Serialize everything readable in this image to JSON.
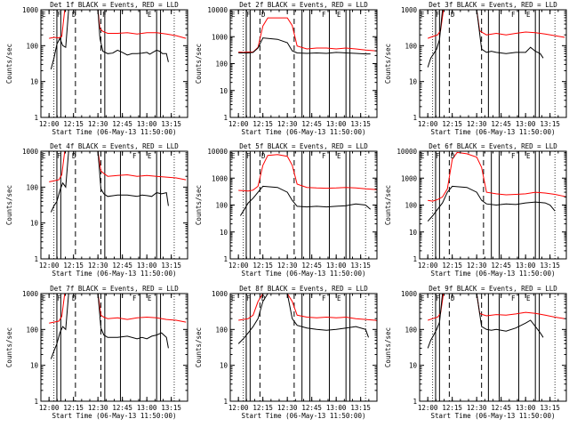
{
  "common": {
    "ylabel": "Counts/sec",
    "xlabel": "Start Time (06-May-13 11:50:00)",
    "title_suffix": "BLACK = Events, RED = LLD",
    "xticks": [
      "12:00",
      "12:15",
      "12:30",
      "12:45",
      "13:00",
      "13:15"
    ],
    "ytick_labels": [
      "1",
      "10",
      "100",
      "1000"
    ],
    "yscale": "log",
    "line_colors": {
      "events": "#000000",
      "lld": "#ff0000"
    }
  },
  "chart_data": [
    {
      "type": "line",
      "title": "Det 1f BLACK = Events, RED = LLD",
      "ylim": [
        1,
        1000
      ],
      "ymax_label": "1000",
      "markers": [
        "E",
        "F",
        "D",
        "",
        "F",
        "",
        "",
        "E"
      ],
      "solid_lines": [
        12.08,
        12.12,
        12.57,
        12.73,
        12.93,
        13.1,
        13.14
      ],
      "dashed_lines": [
        12.27,
        12.53
      ],
      "dotted_lines": [
        12.05,
        13.28
      ],
      "series": [
        {
          "name": "Events",
          "x": [
            12.02,
            12.05,
            12.08,
            12.11,
            12.14,
            12.17,
            12.2,
            12.5,
            12.52,
            12.55,
            12.6,
            12.65,
            12.7,
            12.75,
            12.8,
            12.85,
            12.9,
            12.95,
            13.0,
            13.03,
            13.06,
            13.1,
            13.13,
            13.16,
            13.2,
            13.22
          ],
          "y": [
            22,
            45,
            110,
            160,
            100,
            90,
            1000,
            1000,
            160,
            70,
            60,
            62,
            75,
            65,
            55,
            60,
            60,
            62,
            65,
            58,
            65,
            75,
            70,
            60,
            60,
            35
          ]
        },
        {
          "name": "LLD",
          "x": [
            12.0,
            12.05,
            12.1,
            12.13,
            12.16,
            12.5,
            12.52,
            12.55,
            12.6,
            12.7,
            12.8,
            12.9,
            13.0,
            13.1,
            13.2,
            13.3,
            13.4
          ],
          "y": [
            160,
            170,
            165,
            180,
            1000,
            1000,
            300,
            250,
            220,
            220,
            230,
            210,
            230,
            230,
            210,
            190,
            160
          ]
        }
      ]
    },
    {
      "type": "line",
      "title": "Det 2f BLACK = Events, RED = LLD",
      "ylim": [
        1,
        10000
      ],
      "ymax_label": "10000",
      "markers": [
        "E",
        "F",
        "D",
        "",
        "",
        "",
        "F",
        "E"
      ],
      "solid_lines": [
        12.08,
        12.12,
        12.65,
        12.73,
        12.93,
        13.1,
        13.14
      ],
      "dashed_lines": [
        12.22,
        12.57
      ],
      "dotted_lines": [
        12.05,
        13.3
      ],
      "series": [
        {
          "name": "Events",
          "x": [
            12.0,
            12.05,
            12.1,
            12.15,
            12.2,
            12.25,
            12.4,
            12.5,
            12.55,
            12.6,
            12.7,
            12.8,
            12.9,
            13.0,
            13.1,
            13.2,
            13.3,
            13.35
          ],
          "y": [
            250,
            250,
            250,
            260,
            380,
            900,
            800,
            600,
            300,
            250,
            240,
            250,
            240,
            260,
            250,
            240,
            230,
            230
          ]
        },
        {
          "name": "LLD",
          "x": [
            12.0,
            12.05,
            12.1,
            12.15,
            12.2,
            12.25,
            12.3,
            12.4,
            12.5,
            12.55,
            12.6,
            12.7,
            12.8,
            12.9,
            13.0,
            13.1,
            13.2,
            13.3,
            13.4,
            13.45
          ],
          "y": [
            270,
            260,
            270,
            270,
            400,
            2500,
            5000,
            5000,
            5000,
            2600,
            450,
            350,
            380,
            380,
            350,
            380,
            350,
            320,
            300,
            280
          ]
        }
      ]
    },
    {
      "type": "line",
      "title": "Det 3f BLACK = Events, RED = LLD",
      "ylim": [
        1,
        1000
      ],
      "ymax_label": "1000",
      "markers": [
        "E",
        "F",
        "D",
        "",
        "",
        "",
        "F",
        "E"
      ],
      "solid_lines": [
        12.08,
        12.12,
        12.62,
        12.73,
        12.93,
        13.1,
        13.14
      ],
      "dashed_lines": [
        12.22,
        12.55
      ],
      "dotted_lines": [
        12.05,
        13.3
      ],
      "series": [
        {
          "name": "Events",
          "x": [
            12.0,
            12.03,
            12.06,
            12.09,
            12.12,
            12.15,
            12.5,
            12.55,
            12.6,
            12.65,
            12.7,
            12.8,
            12.9,
            13.0,
            13.05,
            13.1,
            13.15,
            13.18
          ],
          "y": [
            25,
            45,
            60,
            80,
            150,
            1000,
            1000,
            80,
            65,
            70,
            65,
            60,
            65,
            65,
            90,
            70,
            60,
            45
          ]
        },
        {
          "name": "LLD",
          "x": [
            12.0,
            12.05,
            12.1,
            12.13,
            12.16,
            12.5,
            12.53,
            12.56,
            12.6,
            12.7,
            12.8,
            12.9,
            13.0,
            13.1,
            13.2,
            13.3,
            13.4
          ],
          "y": [
            160,
            180,
            200,
            260,
            1000,
            1000,
            260,
            230,
            200,
            220,
            200,
            220,
            240,
            230,
            210,
            190,
            170
          ]
        }
      ]
    },
    {
      "type": "line",
      "title": "Det 4f BLACK = Events, RED = LLD",
      "ylim": [
        1,
        1000
      ],
      "ymax_label": "1000",
      "markers": [
        "E",
        "F",
        "D",
        "",
        "",
        "",
        "F",
        "E"
      ],
      "solid_lines": [
        12.08,
        12.12,
        12.57,
        12.73,
        12.93,
        13.1,
        13.14
      ],
      "dashed_lines": [
        12.27,
        12.53
      ],
      "dotted_lines": [
        12.05,
        13.28
      ],
      "series": [
        {
          "name": "Events",
          "x": [
            12.02,
            12.05,
            12.08,
            12.11,
            12.14,
            12.17,
            12.2,
            12.5,
            12.53,
            12.56,
            12.6,
            12.7,
            12.8,
            12.9,
            12.95,
            13.0,
            13.05,
            13.1,
            13.15,
            13.2,
            13.22
          ],
          "y": [
            20,
            30,
            40,
            80,
            130,
            100,
            1000,
            1000,
            90,
            65,
            55,
            60,
            60,
            55,
            60,
            58,
            55,
            70,
            65,
            70,
            30
          ]
        },
        {
          "name": "LLD",
          "x": [
            12.0,
            12.05,
            12.1,
            12.13,
            12.16,
            12.5,
            12.53,
            12.56,
            12.6,
            12.7,
            12.8,
            12.9,
            13.0,
            13.1,
            13.2,
            13.3,
            13.4
          ],
          "y": [
            140,
            150,
            160,
            220,
            1000,
            1000,
            280,
            240,
            200,
            210,
            220,
            200,
            210,
            200,
            190,
            180,
            160
          ]
        }
      ]
    },
    {
      "type": "line",
      "title": "Det 5f BLACK = Events, RED = LLD",
      "ylim": [
        1,
        10000
      ],
      "ymax_label": "10000",
      "markers": [
        "E",
        "F",
        "D",
        "",
        "",
        "",
        "F",
        "E"
      ],
      "solid_lines": [
        12.08,
        12.12,
        12.65,
        12.73,
        12.93,
        13.1,
        13.14
      ],
      "dashed_lines": [
        12.22,
        12.57
      ],
      "dotted_lines": [
        12.05,
        13.3
      ],
      "series": [
        {
          "name": "Events",
          "x": [
            12.02,
            12.05,
            12.1,
            12.15,
            12.2,
            12.25,
            12.4,
            12.5,
            12.55,
            12.6,
            12.7,
            12.8,
            12.9,
            13.0,
            13.1,
            13.2,
            13.3,
            13.35
          ],
          "y": [
            40,
            60,
            120,
            180,
            300,
            500,
            450,
            300,
            150,
            90,
            85,
            90,
            85,
            90,
            95,
            110,
            100,
            70
          ]
        },
        {
          "name": "LLD",
          "x": [
            12.0,
            12.05,
            12.1,
            12.15,
            12.2,
            12.25,
            12.3,
            12.4,
            12.5,
            12.55,
            12.6,
            12.7,
            12.8,
            12.9,
            13.0,
            13.1,
            13.2,
            13.3,
            13.4,
            13.45
          ],
          "y": [
            350,
            340,
            330,
            360,
            500,
            3000,
            7000,
            7500,
            6500,
            3000,
            600,
            450,
            430,
            420,
            430,
            450,
            430,
            400,
            380,
            350
          ]
        }
      ]
    },
    {
      "type": "line",
      "title": "Det 6f BLACK = Events, RED = LLD",
      "ylim": [
        1,
        10000
      ],
      "ymax_label": "10000",
      "markers": [
        "E",
        "F",
        "D",
        "",
        "",
        "",
        "F",
        "E"
      ],
      "solid_lines": [
        12.08,
        12.12,
        12.65,
        12.73,
        12.93,
        13.1,
        13.14
      ],
      "dashed_lines": [
        12.22,
        12.57
      ],
      "dotted_lines": [
        12.05,
        13.3
      ],
      "series": [
        {
          "name": "Events",
          "x": [
            12.0,
            12.05,
            12.1,
            12.15,
            12.2,
            12.25,
            12.4,
            12.5,
            12.55,
            12.6,
            12.7,
            12.8,
            12.9,
            13.0,
            13.1,
            13.2,
            13.25,
            13.3
          ],
          "y": [
            25,
            40,
            70,
            120,
            300,
            500,
            450,
            300,
            150,
            110,
            100,
            110,
            105,
            120,
            130,
            120,
            100,
            60
          ]
        },
        {
          "name": "LLD",
          "x": [
            12.0,
            12.05,
            12.1,
            12.15,
            12.2,
            12.25,
            12.3,
            12.4,
            12.5,
            12.55,
            12.6,
            12.7,
            12.8,
            12.9,
            13.0,
            13.1,
            13.2,
            13.3,
            13.4,
            13.45
          ],
          "y": [
            150,
            140,
            160,
            200,
            400,
            5000,
            9000,
            8000,
            6000,
            2500,
            300,
            260,
            240,
            250,
            260,
            300,
            280,
            250,
            210,
            180
          ]
        }
      ]
    },
    {
      "type": "line",
      "title": "Det 7f BLACK = Events, RED = LLD",
      "ylim": [
        1,
        1000
      ],
      "ymax_label": "1000",
      "markers": [
        "E",
        "F",
        "D",
        "",
        "",
        "",
        "F",
        "E"
      ],
      "solid_lines": [
        12.08,
        12.12,
        12.57,
        12.73,
        12.93,
        13.1,
        13.14
      ],
      "dashed_lines": [
        12.27,
        12.53
      ],
      "dotted_lines": [
        12.05,
        13.28
      ],
      "series": [
        {
          "name": "Events",
          "x": [
            12.02,
            12.05,
            12.08,
            12.11,
            12.14,
            12.17,
            12.2,
            12.5,
            12.53,
            12.56,
            12.6,
            12.7,
            12.8,
            12.9,
            12.95,
            13.0,
            13.05,
            13.1,
            13.15,
            13.2,
            13.22
          ],
          "y": [
            15,
            25,
            40,
            80,
            120,
            100,
            1000,
            1000,
            110,
            70,
            60,
            60,
            65,
            55,
            60,
            55,
            65,
            70,
            80,
            60,
            30
          ]
        },
        {
          "name": "LLD",
          "x": [
            12.0,
            12.05,
            12.1,
            12.13,
            12.16,
            12.5,
            12.53,
            12.56,
            12.6,
            12.7,
            12.8,
            12.9,
            13.0,
            13.1,
            13.2,
            13.3,
            13.4
          ],
          "y": [
            150,
            160,
            170,
            230,
            1000,
            1000,
            250,
            220,
            200,
            210,
            190,
            210,
            220,
            210,
            190,
            180,
            160
          ]
        }
      ]
    },
    {
      "type": "line",
      "title": "Det 8f BLACK = Events, RED = LLD",
      "ylim": [
        1,
        1000
      ],
      "ymax_label": "1000",
      "markers": [
        "E",
        "F",
        "D",
        "",
        "",
        "",
        "F",
        "E"
      ],
      "solid_lines": [
        12.08,
        12.12,
        12.65,
        12.73,
        12.93,
        13.1,
        13.14
      ],
      "dashed_lines": [
        12.22,
        12.57
      ],
      "dotted_lines": [
        12.05,
        13.3
      ],
      "series": [
        {
          "name": "Events",
          "x": [
            12.0,
            12.05,
            12.1,
            12.15,
            12.2,
            12.25,
            12.3,
            12.5,
            12.55,
            12.6,
            12.7,
            12.8,
            12.9,
            13.0,
            13.1,
            13.2,
            13.3,
            13.33
          ],
          "y": [
            40,
            55,
            80,
            120,
            200,
            600,
            1000,
            1000,
            200,
            130,
            110,
            100,
            95,
            100,
            110,
            120,
            100,
            60
          ]
        },
        {
          "name": "LLD",
          "x": [
            12.0,
            12.05,
            12.1,
            12.15,
            12.2,
            12.25,
            12.3,
            12.5,
            12.55,
            12.6,
            12.7,
            12.8,
            12.9,
            13.0,
            13.1,
            13.2,
            13.3,
            13.4,
            13.45
          ],
          "y": [
            180,
            190,
            200,
            250,
            600,
            1000,
            1000,
            1000,
            600,
            250,
            220,
            210,
            220,
            210,
            220,
            200,
            190,
            180,
            160
          ]
        }
      ]
    },
    {
      "type": "line",
      "title": "Det 9f BLACK = Events, RED = LLD",
      "ylim": [
        1,
        1000
      ],
      "ymax_label": "1000",
      "markers": [
        "E",
        "F",
        "D",
        "",
        "",
        "",
        "F",
        "E"
      ],
      "solid_lines": [
        12.08,
        12.12,
        12.62,
        12.73,
        12.93,
        13.1,
        13.14
      ],
      "dashed_lines": [
        12.22,
        12.55
      ],
      "dotted_lines": [
        12.05,
        13.3
      ],
      "series": [
        {
          "name": "Events",
          "x": [
            12.0,
            12.03,
            12.06,
            12.09,
            12.12,
            12.15,
            12.5,
            12.55,
            12.6,
            12.65,
            12.7,
            12.8,
            12.9,
            13.0,
            13.05,
            13.1,
            13.15,
            13.18
          ],
          "y": [
            30,
            50,
            70,
            100,
            160,
            1000,
            1000,
            120,
            100,
            95,
            100,
            90,
            110,
            150,
            180,
            120,
            80,
            60
          ]
        },
        {
          "name": "LLD",
          "x": [
            12.0,
            12.05,
            12.1,
            12.13,
            12.16,
            12.5,
            12.53,
            12.56,
            12.6,
            12.7,
            12.8,
            12.9,
            13.0,
            13.1,
            13.2,
            13.3,
            13.4
          ],
          "y": [
            180,
            200,
            220,
            280,
            1000,
            1000,
            280,
            260,
            240,
            260,
            250,
            270,
            300,
            280,
            250,
            220,
            200
          ]
        }
      ]
    }
  ]
}
